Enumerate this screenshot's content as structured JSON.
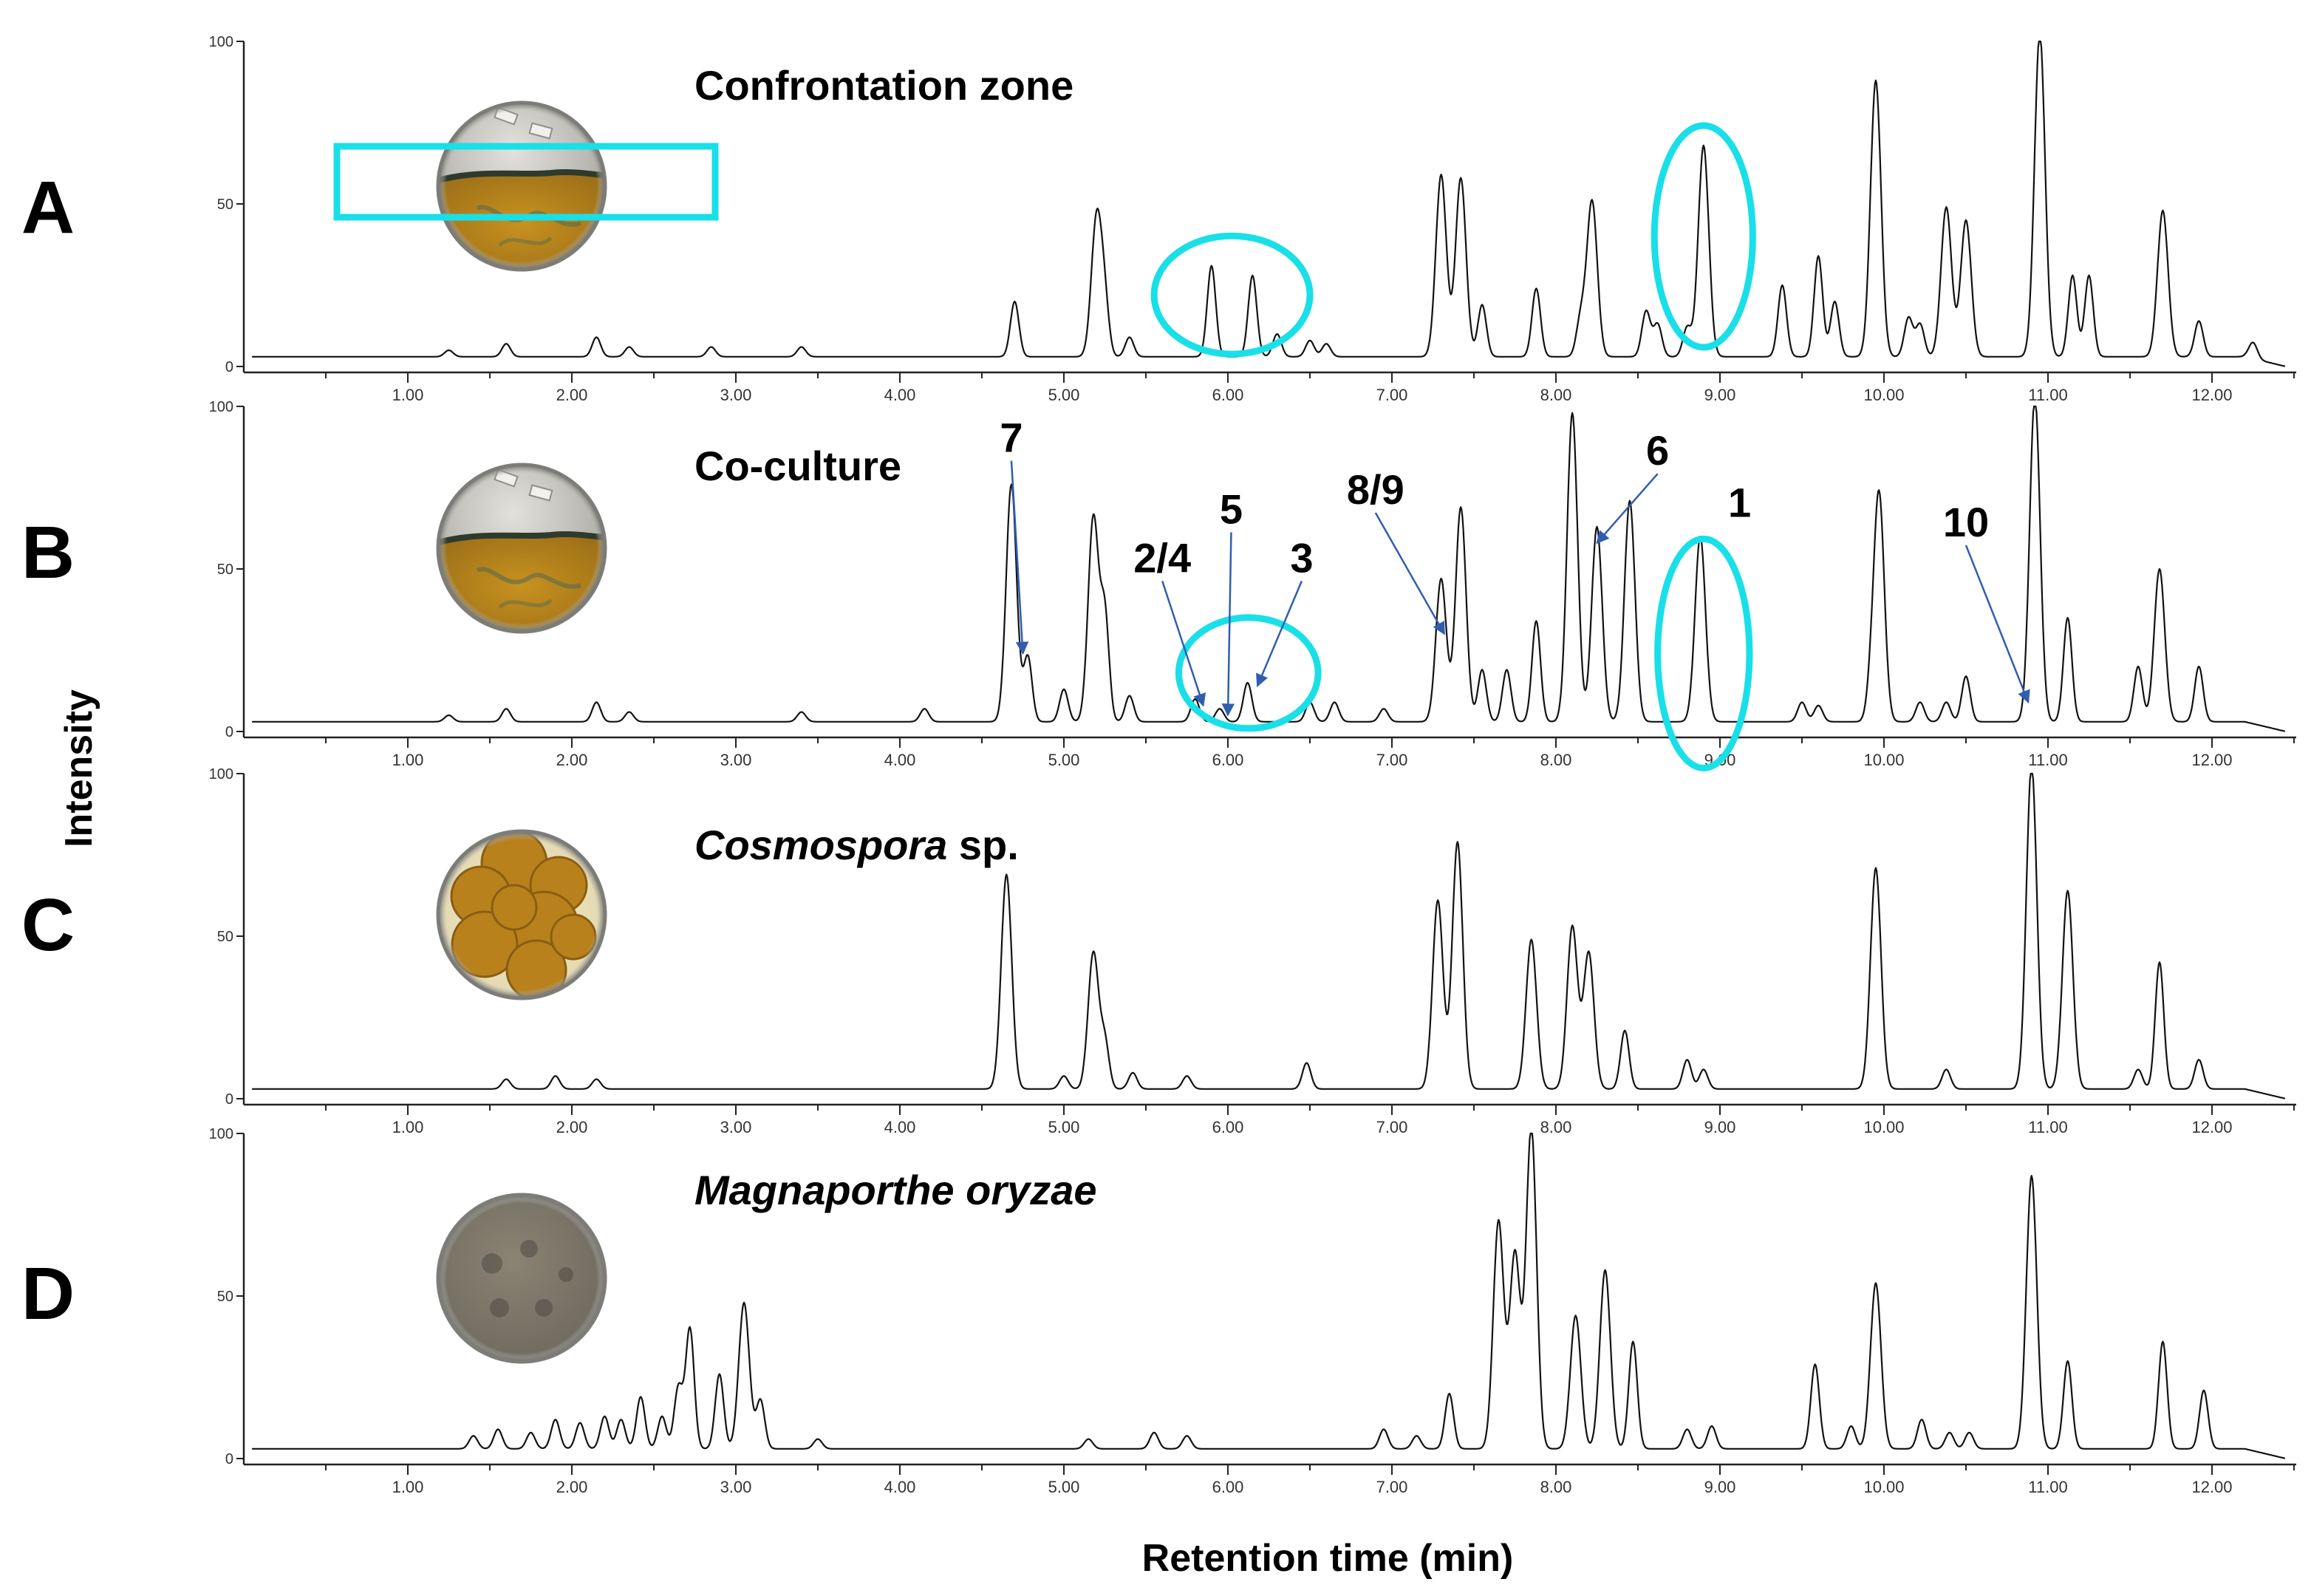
{
  "figure": {
    "x_axis_title": "Retention time (min)",
    "y_axis_title": "Intensity",
    "highlight_color": "#19dfe8",
    "arrow_color": "#2f5eb0",
    "trace_color": "#111111"
  },
  "chart_data": [
    {
      "type": "line",
      "panel": "A",
      "sample_label": "Confrontation zone",
      "sample_label_italic": "",
      "sample_label_suffix": "",
      "plate_image": "petri-dish-confrontation-zone",
      "xlim": [
        0,
        12.5
      ],
      "ylim": [
        0,
        100
      ],
      "xticks": [
        "1.00",
        "2.00",
        "3.00",
        "4.00",
        "5.00",
        "6.00",
        "7.00",
        "8.00",
        "9.00",
        "10.00",
        "11.00",
        "12.00"
      ],
      "yticks": [
        "100",
        "50",
        "0"
      ],
      "baseline": 3,
      "peaks": [
        {
          "rt": 1.25,
          "h": 2
        },
        {
          "rt": 1.6,
          "h": 4
        },
        {
          "rt": 2.15,
          "h": 6
        },
        {
          "rt": 2.35,
          "h": 3
        },
        {
          "rt": 2.85,
          "h": 3
        },
        {
          "rt": 3.4,
          "h": 3
        },
        {
          "rt": 4.7,
          "h": 17
        },
        {
          "rt": 5.2,
          "h": 43
        },
        {
          "rt": 5.25,
          "h": 14
        },
        {
          "rt": 5.4,
          "h": 6
        },
        {
          "rt": 5.9,
          "h": 28
        },
        {
          "rt": 6.15,
          "h": 25
        },
        {
          "rt": 6.3,
          "h": 7
        },
        {
          "rt": 6.5,
          "h": 5
        },
        {
          "rt": 6.6,
          "h": 4
        },
        {
          "rt": 7.3,
          "h": 56
        },
        {
          "rt": 7.42,
          "h": 55
        },
        {
          "rt": 7.55,
          "h": 16
        },
        {
          "rt": 7.88,
          "h": 21
        },
        {
          "rt": 8.15,
          "h": 11
        },
        {
          "rt": 8.22,
          "h": 48
        },
        {
          "rt": 8.55,
          "h": 14
        },
        {
          "rt": 8.62,
          "h": 10
        },
        {
          "rt": 8.8,
          "h": 9
        },
        {
          "rt": 8.9,
          "h": 65
        },
        {
          "rt": 9.38,
          "h": 22
        },
        {
          "rt": 9.6,
          "h": 31
        },
        {
          "rt": 9.7,
          "h": 17
        },
        {
          "rt": 9.95,
          "h": 85
        },
        {
          "rt": 10.15,
          "h": 12
        },
        {
          "rt": 10.22,
          "h": 10
        },
        {
          "rt": 10.38,
          "h": 46
        },
        {
          "rt": 10.5,
          "h": 42
        },
        {
          "rt": 10.95,
          "h": 100
        },
        {
          "rt": 11.15,
          "h": 25
        },
        {
          "rt": 11.25,
          "h": 25
        },
        {
          "rt": 11.7,
          "h": 45
        },
        {
          "rt": 11.92,
          "h": 11
        },
        {
          "rt": 12.25,
          "h": 5
        }
      ],
      "highlights": [
        {
          "shape": "ellipse",
          "rt_range": [
            5.55,
            6.5
          ]
        },
        {
          "shape": "ellipse",
          "rt_range": [
            8.6,
            9.2
          ]
        }
      ],
      "annotations": []
    },
    {
      "type": "line",
      "panel": "B",
      "sample_label": "Co-culture",
      "sample_label_italic": "",
      "sample_label_suffix": "",
      "plate_image": "petri-dish-co-culture",
      "xlim": [
        0,
        12.5
      ],
      "ylim": [
        0,
        100
      ],
      "xticks": [
        "1.00",
        "2.00",
        "3.00",
        "4.00",
        "5.00",
        "6.00",
        "7.00",
        "8.00",
        "9.00",
        "10.00",
        "11.00",
        "12.00"
      ],
      "yticks": [
        "100",
        "50",
        "0"
      ],
      "baseline": 3,
      "peaks": [
        {
          "rt": 1.25,
          "h": 2
        },
        {
          "rt": 1.6,
          "h": 4
        },
        {
          "rt": 2.15,
          "h": 6
        },
        {
          "rt": 2.35,
          "h": 3
        },
        {
          "rt": 3.4,
          "h": 3
        },
        {
          "rt": 4.15,
          "h": 4
        },
        {
          "rt": 4.68,
          "h": 73
        },
        {
          "rt": 4.78,
          "h": 20
        },
        {
          "rt": 5.0,
          "h": 10
        },
        {
          "rt": 5.18,
          "h": 63
        },
        {
          "rt": 5.25,
          "h": 32
        },
        {
          "rt": 5.4,
          "h": 8
        },
        {
          "rt": 5.8,
          "h": 7
        },
        {
          "rt": 5.95,
          "h": 4
        },
        {
          "rt": 6.12,
          "h": 12
        },
        {
          "rt": 6.5,
          "h": 6
        },
        {
          "rt": 6.65,
          "h": 6
        },
        {
          "rt": 6.95,
          "h": 4
        },
        {
          "rt": 7.3,
          "h": 44
        },
        {
          "rt": 7.42,
          "h": 66
        },
        {
          "rt": 7.55,
          "h": 16
        },
        {
          "rt": 7.7,
          "h": 16
        },
        {
          "rt": 7.88,
          "h": 31
        },
        {
          "rt": 8.1,
          "h": 95
        },
        {
          "rt": 8.25,
          "h": 60
        },
        {
          "rt": 8.45,
          "h": 68
        },
        {
          "rt": 8.88,
          "h": 57
        },
        {
          "rt": 9.5,
          "h": 6
        },
        {
          "rt": 9.6,
          "h": 5
        },
        {
          "rt": 9.92,
          "h": 8
        },
        {
          "rt": 9.97,
          "h": 70
        },
        {
          "rt": 10.22,
          "h": 6
        },
        {
          "rt": 10.38,
          "h": 6
        },
        {
          "rt": 10.5,
          "h": 14
        },
        {
          "rt": 10.92,
          "h": 100
        },
        {
          "rt": 11.12,
          "h": 32
        },
        {
          "rt": 11.55,
          "h": 17
        },
        {
          "rt": 11.68,
          "h": 47
        },
        {
          "rt": 11.92,
          "h": 17
        }
      ],
      "highlights": [
        {
          "shape": "ellipse",
          "rt_range": [
            5.7,
            6.55
          ]
        },
        {
          "shape": "ellipse",
          "rt_range": [
            8.62,
            9.18
          ]
        }
      ],
      "annotations": [
        {
          "label": "7",
          "text_rt": 4.68,
          "text_y": 86,
          "tip_rt": 4.75,
          "tip_y": 24
        },
        {
          "label": "2/4",
          "text_rt": 5.6,
          "text_y": 49,
          "tip_rt": 5.85,
          "tip_y": 8
        },
        {
          "label": "5",
          "text_rt": 6.02,
          "text_y": 64,
          "tip_rt": 6.0,
          "tip_y": 5
        },
        {
          "label": "3",
          "text_rt": 6.45,
          "text_y": 49,
          "tip_rt": 6.18,
          "tip_y": 14
        },
        {
          "label": "8/9",
          "text_rt": 6.9,
          "text_y": 70,
          "tip_rt": 7.32,
          "tip_y": 30
        },
        {
          "label": "6",
          "text_rt": 8.62,
          "text_y": 82,
          "tip_rt": 8.25,
          "tip_y": 58
        },
        {
          "label": "1",
          "text_rt": 9.12,
          "text_y": 66,
          "tip_rt": null,
          "tip_y": null
        },
        {
          "label": "10",
          "text_rt": 10.5,
          "text_y": 60,
          "tip_rt": 10.88,
          "tip_y": 9
        }
      ]
    },
    {
      "type": "line",
      "panel": "C",
      "sample_label": "",
      "sample_label_italic": "Cosmospora",
      "sample_label_suffix": " sp.",
      "plate_image": "petri-dish-cosmospora",
      "xlim": [
        0,
        12.5
      ],
      "ylim": [
        0,
        100
      ],
      "xticks": [
        "1.00",
        "2.00",
        "3.00",
        "4.00",
        "5.00",
        "6.00",
        "7.00",
        "8.00",
        "9.00",
        "10.00",
        "11.00",
        "12.00"
      ],
      "yticks": [
        "100",
        "50",
        "0"
      ],
      "baseline": 3,
      "peaks": [
        {
          "rt": 1.6,
          "h": 3
        },
        {
          "rt": 1.9,
          "h": 4
        },
        {
          "rt": 2.15,
          "h": 3
        },
        {
          "rt": 4.65,
          "h": 66
        },
        {
          "rt": 5.0,
          "h": 4
        },
        {
          "rt": 5.18,
          "h": 42
        },
        {
          "rt": 5.25,
          "h": 14
        },
        {
          "rt": 5.42,
          "h": 5
        },
        {
          "rt": 5.75,
          "h": 4
        },
        {
          "rt": 6.48,
          "h": 8
        },
        {
          "rt": 7.28,
          "h": 58
        },
        {
          "rt": 7.4,
          "h": 76
        },
        {
          "rt": 7.85,
          "h": 46
        },
        {
          "rt": 8.1,
          "h": 50
        },
        {
          "rt": 8.2,
          "h": 42
        },
        {
          "rt": 8.42,
          "h": 18
        },
        {
          "rt": 8.8,
          "h": 9
        },
        {
          "rt": 8.9,
          "h": 6
        },
        {
          "rt": 9.95,
          "h": 68
        },
        {
          "rt": 10.38,
          "h": 6
        },
        {
          "rt": 10.9,
          "h": 100
        },
        {
          "rt": 11.12,
          "h": 61
        },
        {
          "rt": 11.55,
          "h": 6
        },
        {
          "rt": 11.68,
          "h": 39
        },
        {
          "rt": 11.92,
          "h": 9
        }
      ],
      "highlights": [],
      "annotations": []
    },
    {
      "type": "line",
      "panel": "D",
      "sample_label": "",
      "sample_label_italic": "Magnaporthe oryzae",
      "sample_label_suffix": "",
      "plate_image": "petri-dish-magnaporthe-oryzae",
      "xlim": [
        0,
        12.5
      ],
      "ylim": [
        0,
        100
      ],
      "xticks": [
        "1.00",
        "2.00",
        "3.00",
        "4.00",
        "5.00",
        "6.00",
        "7.00",
        "8.00",
        "9.00",
        "10.00",
        "11.00",
        "12.00"
      ],
      "yticks": [
        "100",
        "50",
        "0"
      ],
      "baseline": 3,
      "peaks": [
        {
          "rt": 1.4,
          "h": 4
        },
        {
          "rt": 1.55,
          "h": 6
        },
        {
          "rt": 1.75,
          "h": 5
        },
        {
          "rt": 1.9,
          "h": 9
        },
        {
          "rt": 2.05,
          "h": 8
        },
        {
          "rt": 2.2,
          "h": 10
        },
        {
          "rt": 2.3,
          "h": 9
        },
        {
          "rt": 2.42,
          "h": 16
        },
        {
          "rt": 2.55,
          "h": 10
        },
        {
          "rt": 2.65,
          "h": 19
        },
        {
          "rt": 2.72,
          "h": 37
        },
        {
          "rt": 2.9,
          "h": 23
        },
        {
          "rt": 3.05,
          "h": 45
        },
        {
          "rt": 3.15,
          "h": 15
        },
        {
          "rt": 3.5,
          "h": 3
        },
        {
          "rt": 5.15,
          "h": 3
        },
        {
          "rt": 5.55,
          "h": 5
        },
        {
          "rt": 5.75,
          "h": 4
        },
        {
          "rt": 6.95,
          "h": 6
        },
        {
          "rt": 7.15,
          "h": 4
        },
        {
          "rt": 7.35,
          "h": 17
        },
        {
          "rt": 7.65,
          "h": 70
        },
        {
          "rt": 7.75,
          "h": 60
        },
        {
          "rt": 7.85,
          "h": 99
        },
        {
          "rt": 8.12,
          "h": 41
        },
        {
          "rt": 8.3,
          "h": 55
        },
        {
          "rt": 8.47,
          "h": 33
        },
        {
          "rt": 8.8,
          "h": 6
        },
        {
          "rt": 8.95,
          "h": 7
        },
        {
          "rt": 9.58,
          "h": 26
        },
        {
          "rt": 9.8,
          "h": 7
        },
        {
          "rt": 9.95,
          "h": 51
        },
        {
          "rt": 10.23,
          "h": 9
        },
        {
          "rt": 10.4,
          "h": 5
        },
        {
          "rt": 10.52,
          "h": 5
        },
        {
          "rt": 10.9,
          "h": 84
        },
        {
          "rt": 11.12,
          "h": 27
        },
        {
          "rt": 11.7,
          "h": 33
        },
        {
          "rt": 11.95,
          "h": 18
        }
      ],
      "highlights": [],
      "annotations": []
    }
  ]
}
